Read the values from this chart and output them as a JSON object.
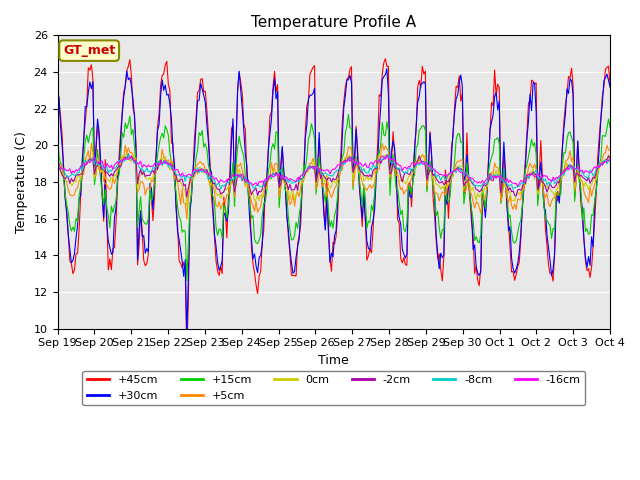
{
  "title": "Temperature Profile A",
  "xlabel": "Time",
  "ylabel": "Temperature (C)",
  "ylim": [
    10,
    26
  ],
  "xlim_days": 15,
  "annotation_text": "GT_met",
  "background_color": "#e8e8e8",
  "series": [
    {
      "label": "+45cm",
      "color": "#ff0000"
    },
    {
      "label": "+30cm",
      "color": "#0000ff"
    },
    {
      "label": "+15cm",
      "color": "#00cc00"
    },
    {
      "label": "+5cm",
      "color": "#ff8800"
    },
    {
      "label": "0cm",
      "color": "#cccc00"
    },
    {
      "label": "-2cm",
      "color": "#aa00aa"
    },
    {
      "label": "-8cm",
      "color": "#00cccc"
    },
    {
      "label": "-16cm",
      "color": "#ff00ff"
    }
  ],
  "xtick_labels": [
    "Sep 19",
    "Sep 20",
    "Sep 21",
    "Sep 22",
    "Sep 23",
    "Sep 24",
    "Sep 25",
    "Sep 26",
    "Sep 27",
    "Sep 28",
    "Sep 29",
    "Sep 30",
    "Oct 1",
    "Oct 2",
    "Oct 3",
    "Oct 4"
  ],
  "ytick_values": [
    10,
    12,
    14,
    16,
    18,
    20,
    22,
    24,
    26
  ]
}
